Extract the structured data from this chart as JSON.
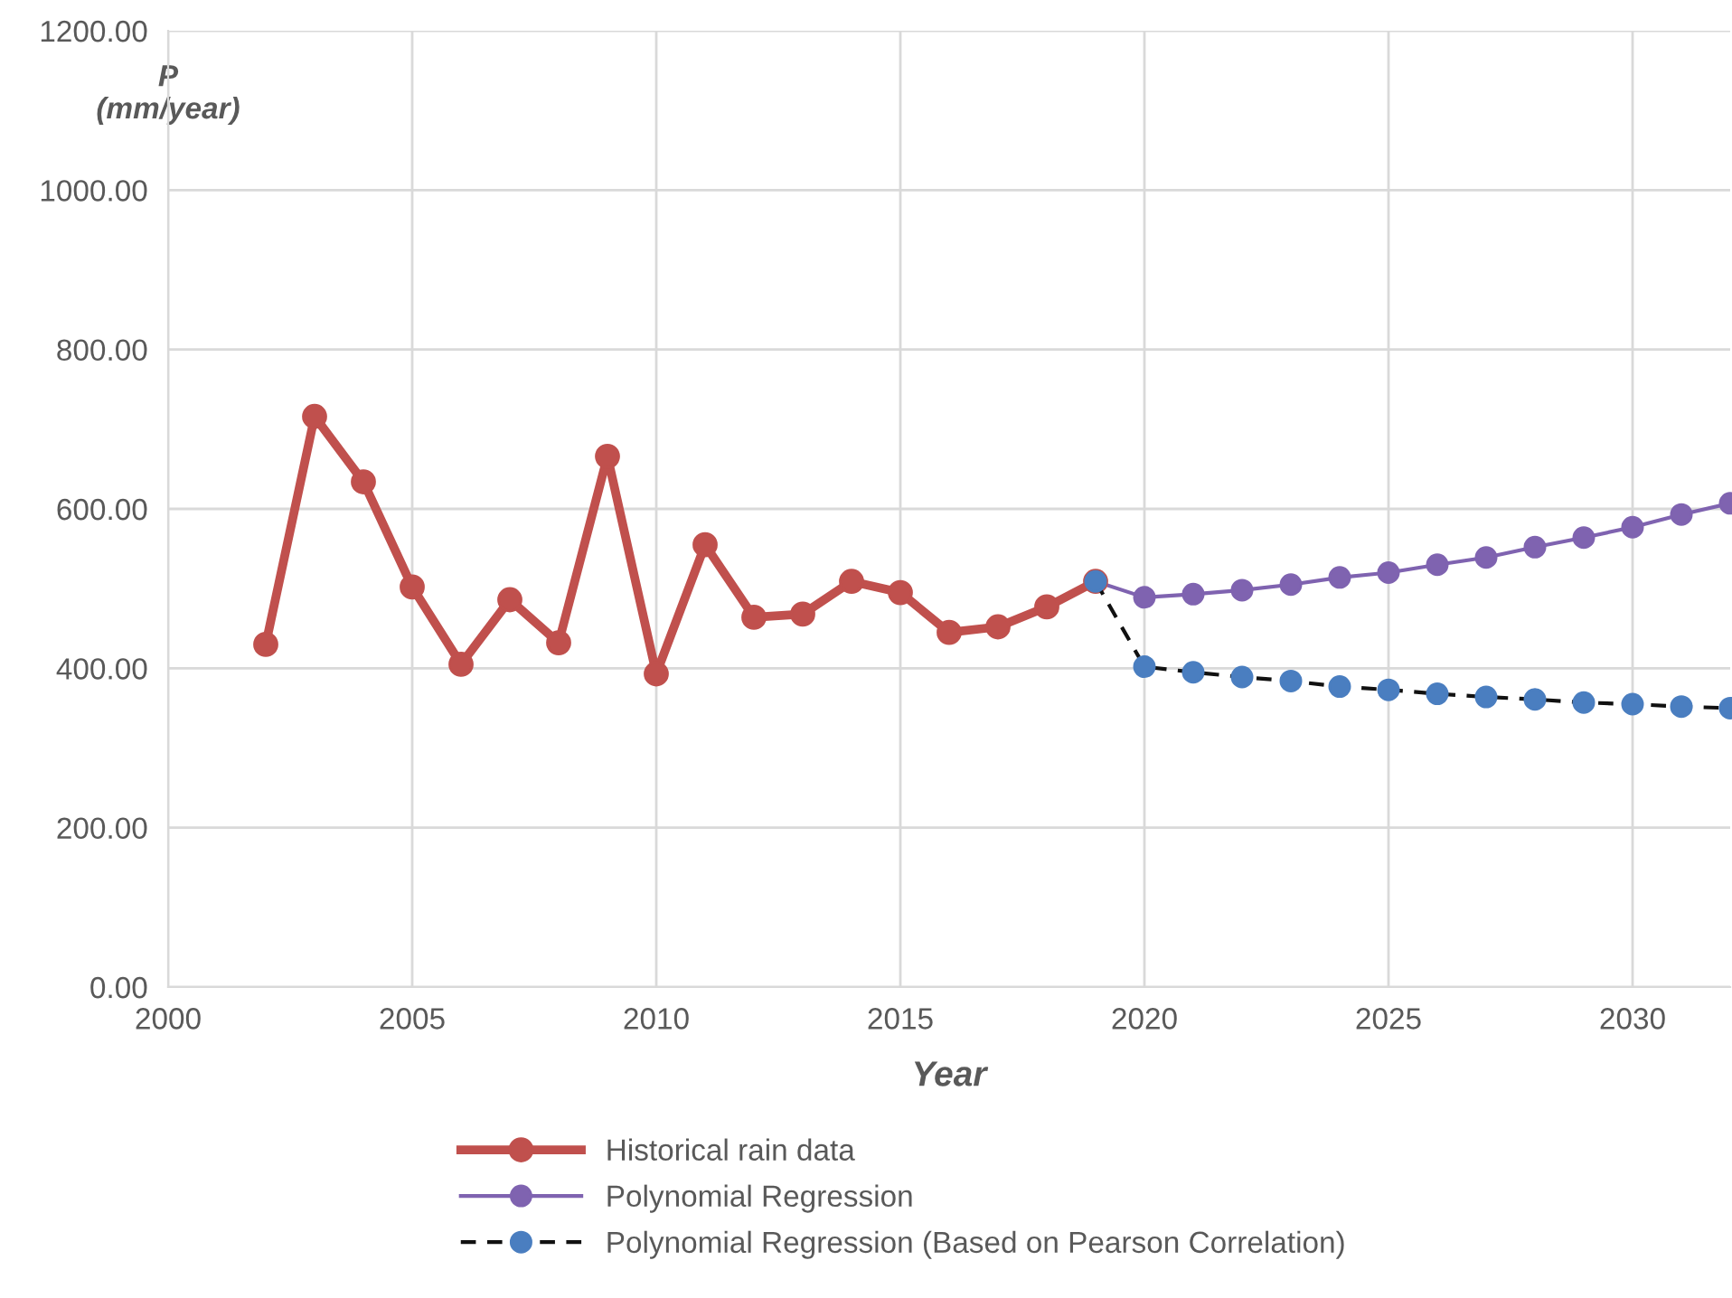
{
  "chart_data": {
    "type": "line",
    "xlabel": "Year",
    "ylabel": "P\n(mm/year)",
    "series": [
      {
        "name": "Historical rain data",
        "color": "#c0504d",
        "line_style": "solid",
        "x": [
          2002,
          2003,
          2004,
          2005,
          2006,
          2007,
          2008,
          2009,
          2010,
          2011,
          2012,
          2013,
          2014,
          2015,
          2016,
          2017,
          2018,
          2019
        ],
        "values": [
          430,
          716,
          634,
          502,
          405,
          486,
          432,
          666,
          393,
          555,
          464,
          468,
          509,
          495,
          445,
          452,
          477,
          509
        ]
      },
      {
        "name": "Polynomial Regression",
        "color": "#7f63b0",
        "line_style": "solid",
        "x": [
          2019,
          2020,
          2021,
          2022,
          2023,
          2024,
          2025,
          2026,
          2027,
          2028,
          2029,
          2030,
          2031,
          2032
        ],
        "values": [
          509,
          489,
          493,
          498,
          505,
          514,
          520,
          530,
          539,
          552,
          564,
          577,
          593,
          607
        ]
      },
      {
        "name": "Polynomial Regression (Based on Pearson Correlation)",
        "color": "#4a7ec0",
        "line_style": "dashed",
        "x": [
          2019,
          2020,
          2021,
          2022,
          2023,
          2024,
          2025,
          2026,
          2027,
          2028,
          2029,
          2030,
          2031,
          2032
        ],
        "values": [
          509,
          402,
          395,
          389,
          384,
          377,
          373,
          368,
          364,
          361,
          357,
          355,
          352,
          350
        ]
      }
    ],
    "xlim": [
      2000,
      2032
    ],
    "xticks": [
      2000,
      2005,
      2010,
      2015,
      2020,
      2025,
      2030
    ],
    "ylim": [
      0,
      1200
    ],
    "yticks": [
      {
        "value": 0,
        "label": "0.00"
      },
      {
        "value": 200,
        "label": "200.00"
      },
      {
        "value": 400,
        "label": "400.00"
      },
      {
        "value": 600,
        "label": "600.00"
      },
      {
        "value": 800,
        "label": "800.00"
      },
      {
        "value": 1000,
        "label": "1000.00"
      },
      {
        "value": 1200,
        "label": "1200.00"
      }
    ],
    "grid": true,
    "legend": "bottom",
    "marker": "circle"
  }
}
